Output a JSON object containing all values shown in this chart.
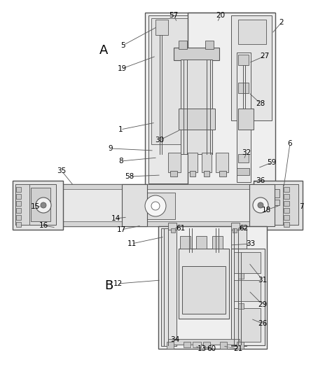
{
  "bg_color": "#ffffff",
  "lc": "#555555",
  "fc_light": "#f0f0f0",
  "fc_mid": "#e0e0e0",
  "fc_dark": "#c8c8c8",
  "figsize": [
    4.44,
    5.24
  ],
  "dpi": 100
}
